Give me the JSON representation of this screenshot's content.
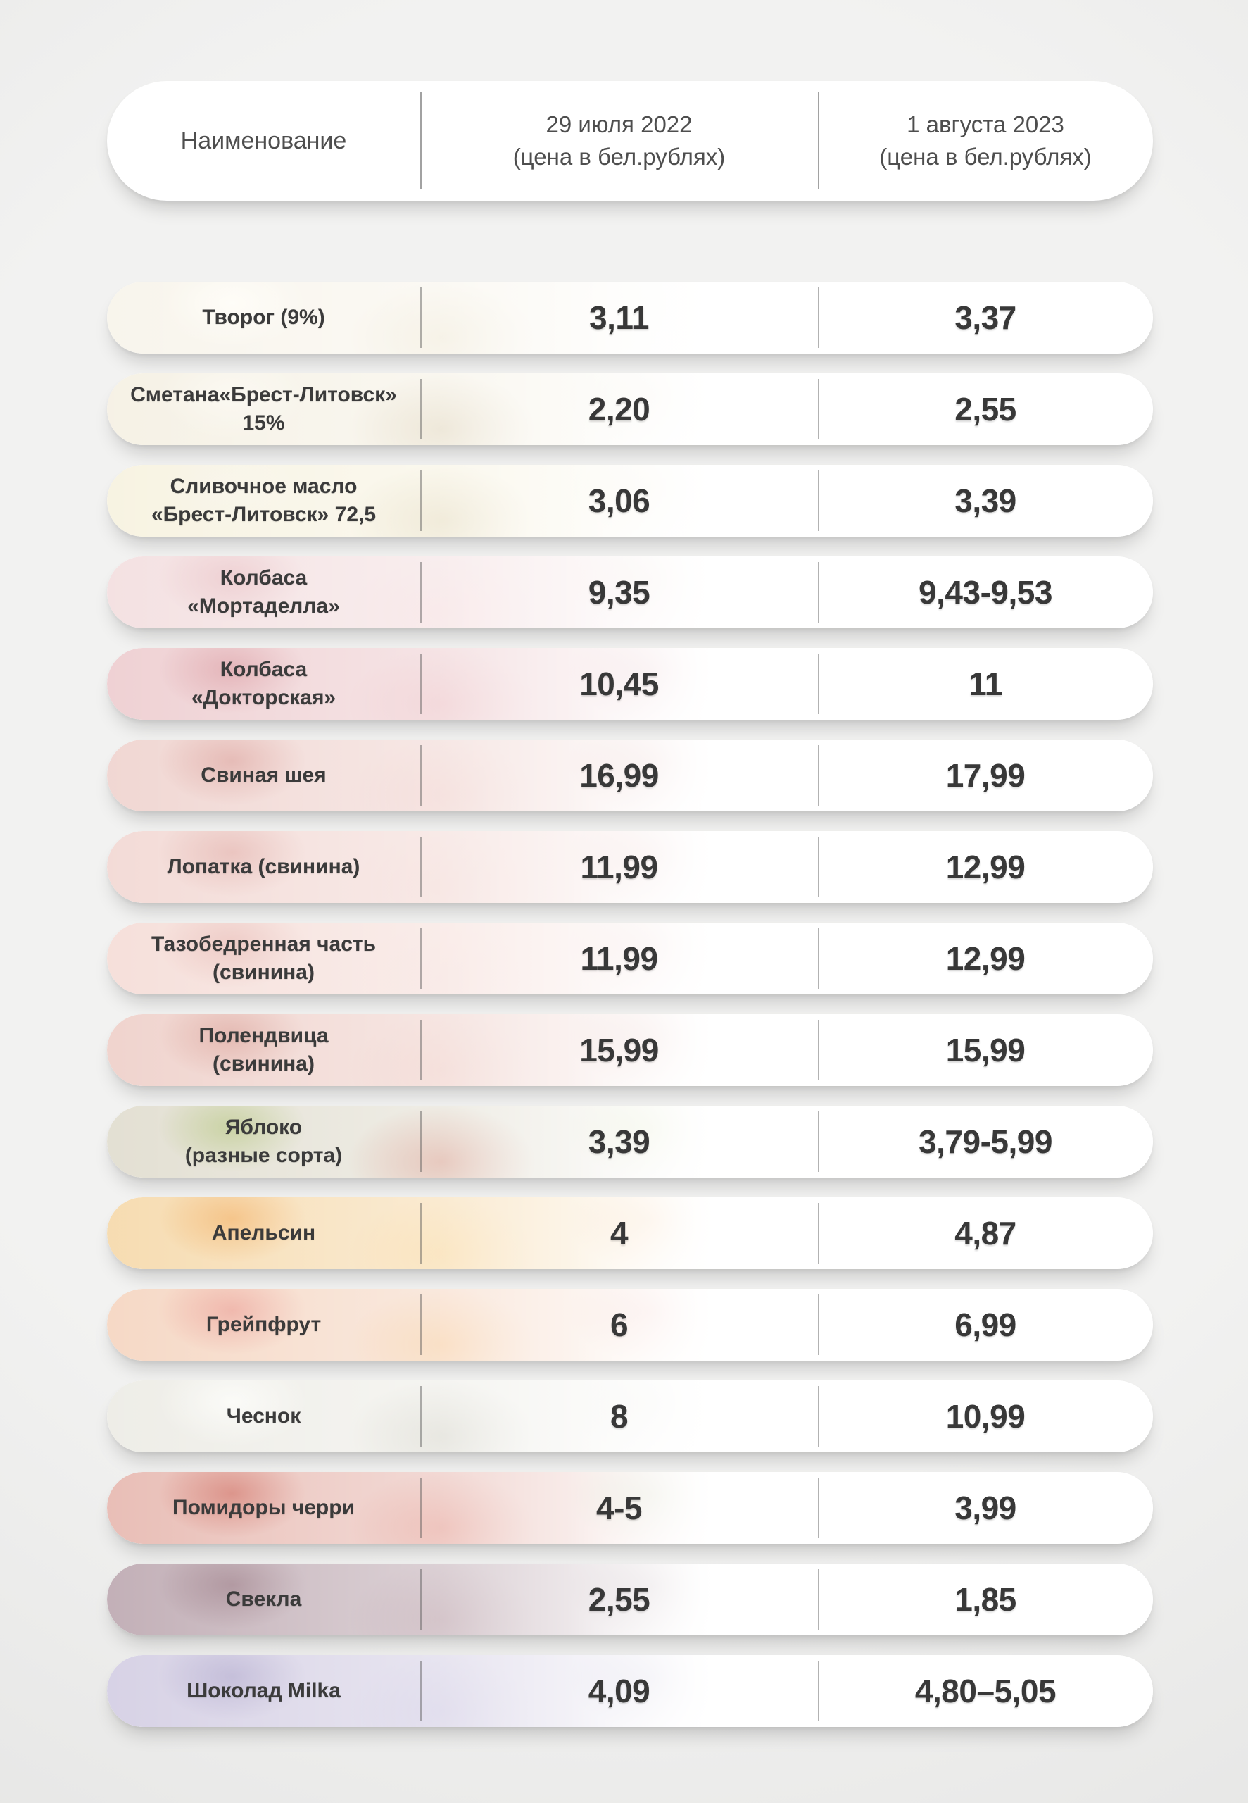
{
  "colors": {
    "text": "#3b3b3b",
    "header_text": "#4e4e4e",
    "row_background": "#ffffff"
  },
  "header": {
    "name_col": "Наименование",
    "col_2022": {
      "line1": "29 июля 2022",
      "line2": "(цена в бел.рублях)"
    },
    "col_2023": {
      "line1": "1 августа 2023",
      "line2": "(цена в бел.рублях)"
    }
  },
  "rows": [
    {
      "name": "Творог (9%)",
      "p2022": "3,11",
      "p2023": "3,37",
      "theme": "t-tvorog"
    },
    {
      "name": "Сметана«Брест-Литовск»\n15%",
      "p2022": "2,20",
      "p2023": "2,55",
      "theme": "t-smetana"
    },
    {
      "name": "Сливочное масло\n«Брест-Литовск» 72,5",
      "p2022": "3,06",
      "p2023": "3,39",
      "theme": "t-butter"
    },
    {
      "name": "Колбаса\n«Мортаделла»",
      "p2022": "9,35",
      "p2023": "9,43-9,53",
      "theme": "t-mortadella"
    },
    {
      "name": "Колбаса\n«Докторская»",
      "p2022": "10,45",
      "p2023": "11",
      "theme": "t-doctorskaya"
    },
    {
      "name": "Свиная шея",
      "p2022": "16,99",
      "p2023": "17,99",
      "theme": "t-neck"
    },
    {
      "name": "Лопатка (свинина)",
      "p2022": "11,99",
      "p2023": "12,99",
      "theme": "t-shoulder"
    },
    {
      "name": "Тазобедренная часть\n(свинина)",
      "p2022": "11,99",
      "p2023": "12,99",
      "theme": "t-hip"
    },
    {
      "name": "Полендвица\n(свинина)",
      "p2022": "15,99",
      "p2023": "15,99",
      "theme": "t-polendvitsa"
    },
    {
      "name": "Яблоко\n(разные сорта)",
      "p2022": "3,39",
      "p2023": "3,79-5,99",
      "theme": "t-apple"
    },
    {
      "name": "Апельсин",
      "p2022": "4",
      "p2023": "4,87",
      "theme": "t-orange"
    },
    {
      "name": "Грейпфрут",
      "p2022": "6",
      "p2023": "6,99",
      "theme": "t-grapefruit"
    },
    {
      "name": "Чеснок",
      "p2022": "8",
      "p2023": "10,99",
      "theme": "t-garlic"
    },
    {
      "name": "Помидоры черри",
      "p2022": "4-5",
      "p2023": "3,99",
      "theme": "t-cherry"
    },
    {
      "name": "Свекла",
      "p2022": "2,55",
      "p2023": "1,85",
      "theme": "t-beet"
    },
    {
      "name": "Шоколад Milka",
      "p2022": "4,09",
      "p2023": "4,80–5,05",
      "theme": "t-milka"
    }
  ],
  "chart_data": {
    "type": "table",
    "columns": [
      "Наименование",
      "29 июля 2022 (цена в бел.рублях)",
      "1 августа 2023 (цена в бел.рублях)"
    ],
    "rows": [
      [
        "Творог (9%)",
        "3,11",
        "3,37"
      ],
      [
        "Сметана«Брест-Литовск» 15%",
        "2,20",
        "2,55"
      ],
      [
        "Сливочное масло «Брест-Литовск» 72,5",
        "3,06",
        "3,39"
      ],
      [
        "Колбаса «Мортаделла»",
        "9,35",
        "9,43-9,53"
      ],
      [
        "Колбаса «Докторская»",
        "10,45",
        "11"
      ],
      [
        "Свиная шея",
        "16,99",
        "17,99"
      ],
      [
        "Лопатка (свинина)",
        "11,99",
        "12,99"
      ],
      [
        "Тазобедренная часть (свинина)",
        "11,99",
        "12,99"
      ],
      [
        "Полендвица (свинина)",
        "15,99",
        "15,99"
      ],
      [
        "Яблоко (разные сорта)",
        "3,39",
        "3,79-5,99"
      ],
      [
        "Апельсин",
        "4",
        "4,87"
      ],
      [
        "Грейпфрут",
        "6",
        "6,99"
      ],
      [
        "Чеснок",
        "8",
        "10,99"
      ],
      [
        "Помидоры черри",
        "4-5",
        "3,99"
      ],
      [
        "Свекла",
        "2,55",
        "1,85"
      ],
      [
        "Шоколад Milka",
        "4,09",
        "4,80–5,05"
      ]
    ],
    "layout_hints": {
      "grid": false,
      "row_style": "rounded-pill",
      "photo_fade": "left-to-white"
    }
  }
}
